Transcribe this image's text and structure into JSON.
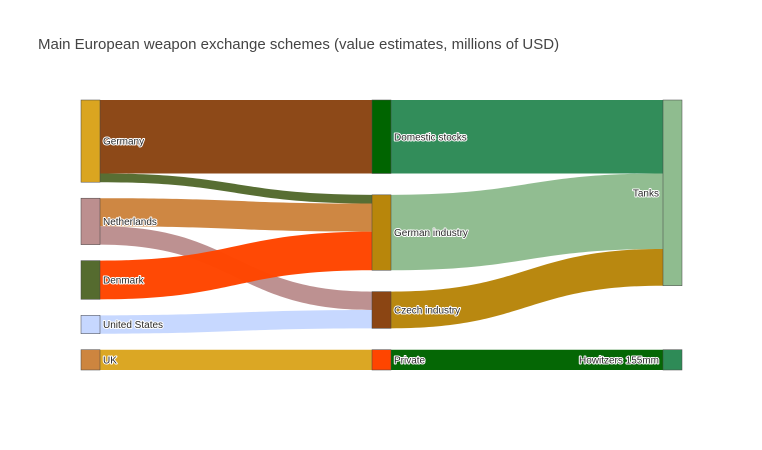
{
  "title": "Main European weapon exchange schemes (value estimates, millions of USD)",
  "chart_data": {
    "type": "sankey",
    "title": "Main European weapon exchange schemes (value estimates, millions of USD)",
    "nodes": [
      {
        "id": "germany",
        "label": "Germany",
        "color": "#DAA520",
        "column": 0
      },
      {
        "id": "netherlands",
        "label": "Netherlands",
        "color": "#BC8F8F",
        "column": 0
      },
      {
        "id": "denmark",
        "label": "Denmark",
        "color": "#556B2F",
        "column": 0
      },
      {
        "id": "us",
        "label": "United States",
        "color": "#C6D7FF",
        "column": 0
      },
      {
        "id": "uk",
        "label": "UK",
        "color": "#CD853F",
        "column": 0
      },
      {
        "id": "domestic",
        "label": "Domestic stocks",
        "color": "#006400",
        "column": 1
      },
      {
        "id": "german_ind",
        "label": "German industry",
        "color": "#B8860B",
        "column": 1
      },
      {
        "id": "czech_ind",
        "label": "Czech industry",
        "color": "#8B4513",
        "column": 1
      },
      {
        "id": "private",
        "label": "Private",
        "color": "#FF4500",
        "column": 1
      },
      {
        "id": "tanks",
        "label": "Tanks",
        "color": "#8FBC8F",
        "column": 2
      },
      {
        "id": "howitzers",
        "label": "Howitzers 155mm",
        "color": "#2E8B57",
        "column": 2
      }
    ],
    "links": [
      {
        "source": "germany",
        "target": "domestic",
        "value": 380,
        "color": "#8B4513"
      },
      {
        "source": "germany",
        "target": "german_ind",
        "value": 45,
        "color": "#556B2F"
      },
      {
        "source": "netherlands",
        "target": "german_ind",
        "value": 145,
        "color": "#CD853F"
      },
      {
        "source": "netherlands",
        "target": "czech_ind",
        "value": 95,
        "color": "#BC8F8F"
      },
      {
        "source": "denmark",
        "target": "german_ind",
        "value": 200,
        "color": "#FF4500"
      },
      {
        "source": "us",
        "target": "czech_ind",
        "value": 95,
        "color": "#C6D7FF"
      },
      {
        "source": "uk",
        "target": "private",
        "value": 105,
        "color": "#DAA520"
      },
      {
        "source": "domestic",
        "target": "tanks",
        "value": 380,
        "color": "#2E8B57"
      },
      {
        "source": "german_ind",
        "target": "tanks",
        "value": 390,
        "color": "#8FBC8F"
      },
      {
        "source": "czech_ind",
        "target": "tanks",
        "value": 190,
        "color": "#B8860B"
      },
      {
        "source": "private",
        "target": "howitzers",
        "value": 105,
        "color": "#006400"
      }
    ]
  }
}
